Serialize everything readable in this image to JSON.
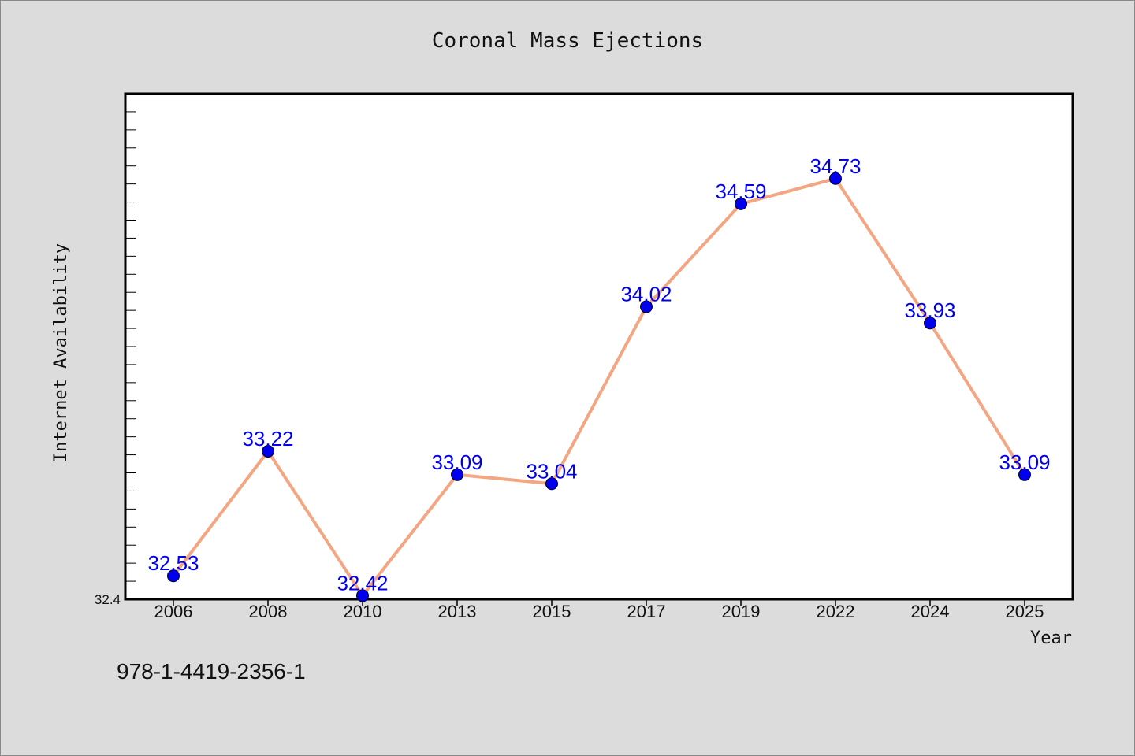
{
  "chart_data": {
    "type": "line",
    "title": "Coronal Mass Ejections",
    "xlabel": "Year",
    "ylabel": "Internet Availability",
    "categories": [
      "2006",
      "2008",
      "2010",
      "2013",
      "2015",
      "2017",
      "2019",
      "2022",
      "2024",
      "2025"
    ],
    "series": [
      {
        "values": [
          32.53,
          33.22,
          32.42,
          33.09,
          33.04,
          34.02,
          34.59,
          34.73,
          33.93,
          33.09
        ],
        "labels": [
          "32.53",
          "33.22",
          "32.42",
          "33.09",
          "33.04",
          "34.02",
          "34.59",
          "34.73",
          "33.93",
          "33.09"
        ]
      }
    ],
    "ylim": [
      32.4,
      35.2
    ],
    "yticks_labeled": [
      "32.4"
    ],
    "grid": false,
    "legend": "none",
    "colors": {
      "line": "#f4a582",
      "marker": "#0000ee",
      "data_label": "#0000ee",
      "background": "#dcdcdc",
      "plot_background": "#ffffff"
    }
  },
  "footnote": "978-1-4419-2356-1"
}
